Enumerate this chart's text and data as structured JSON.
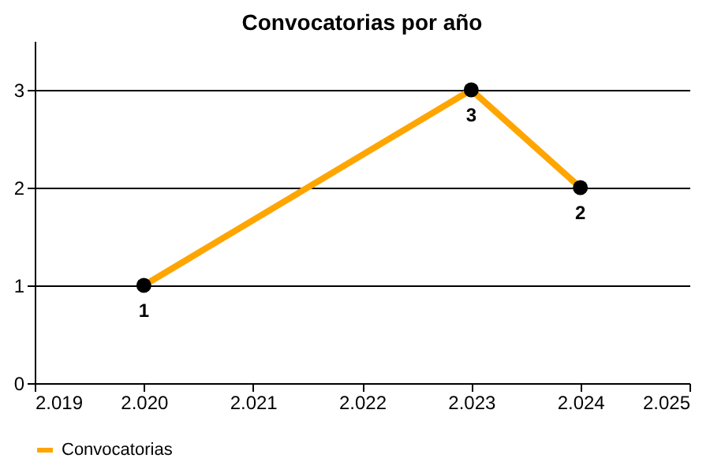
{
  "chart_data": {
    "type": "line",
    "title": "Convocatorias por año",
    "x": [
      2020,
      2023,
      2024
    ],
    "series": [
      {
        "name": "Convocatorias",
        "color": "#ffa500",
        "values": [
          1,
          3,
          2
        ]
      }
    ],
    "xlim": [
      2019,
      2025
    ],
    "xticks": [
      {
        "value": 2019,
        "label": "2.019"
      },
      {
        "value": 2020,
        "label": "2.020"
      },
      {
        "value": 2021,
        "label": "2.021"
      },
      {
        "value": 2022,
        "label": "2.022"
      },
      {
        "value": 2023,
        "label": "2.023"
      },
      {
        "value": 2024,
        "label": "2.024"
      },
      {
        "value": 2025,
        "label": "2.025"
      }
    ],
    "ylim": [
      0,
      3.5
    ],
    "yticks": [
      0,
      1,
      2,
      3
    ],
    "grid": "y",
    "legend": "bottom",
    "marker": "circle",
    "line_style": "solid",
    "data_labels": true
  }
}
